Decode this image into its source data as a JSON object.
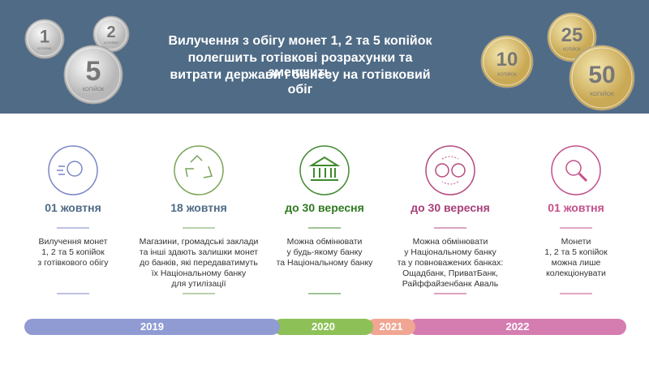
{
  "header": {
    "title": [
      "Вилучення з обігу монет 1, 2 та 5 копійок",
      "полегшить готівкові розрахунки та зменшить",
      "витрати держави і бізнесу на готівковий обіг"
    ]
  },
  "coins": [
    {
      "value": "1",
      "word": "КОПІЙКА"
    },
    {
      "value": "2",
      "word": "КОПІЙКИ"
    },
    {
      "value": "5",
      "word": "КОПІЙОК"
    },
    {
      "value": "10",
      "word": "КОПІЙОК"
    },
    {
      "value": "25",
      "word": "КОПІЙОК"
    },
    {
      "value": "50",
      "word": "КОПІЙОК"
    }
  ],
  "steps": [
    {
      "date": "01 жовтня",
      "text": [
        "Вилучення монет",
        "1, 2 та 5 копійок",
        "з готівкового обігу"
      ]
    },
    {
      "date": "18 жовтня",
      "text": [
        "Магазини, громадські заклади",
        "та інші здають залишки монет",
        "до банків, які передаватимуть",
        "їх Національному банку",
        "для утилізації"
      ]
    },
    {
      "date": "до 30 вересня",
      "text": [
        "Можна обмінювати",
        "у будь-якому банку",
        "та Національному банку"
      ]
    },
    {
      "date": "до 30 вересня",
      "text": [
        "Можна обмінювати",
        "у Національному банку",
        "та у повноважених банках:",
        "Ощадбанк, ПриватБанк,",
        "Райффайзенбанк Аваль"
      ]
    },
    {
      "date": "01 жовтня",
      "text": [
        "Монети",
        "1, 2 та 5 копійок",
        "можна лише",
        "колекціонувати"
      ]
    }
  ],
  "timeline": [
    "2019",
    "2020",
    "2021",
    "2022"
  ]
}
